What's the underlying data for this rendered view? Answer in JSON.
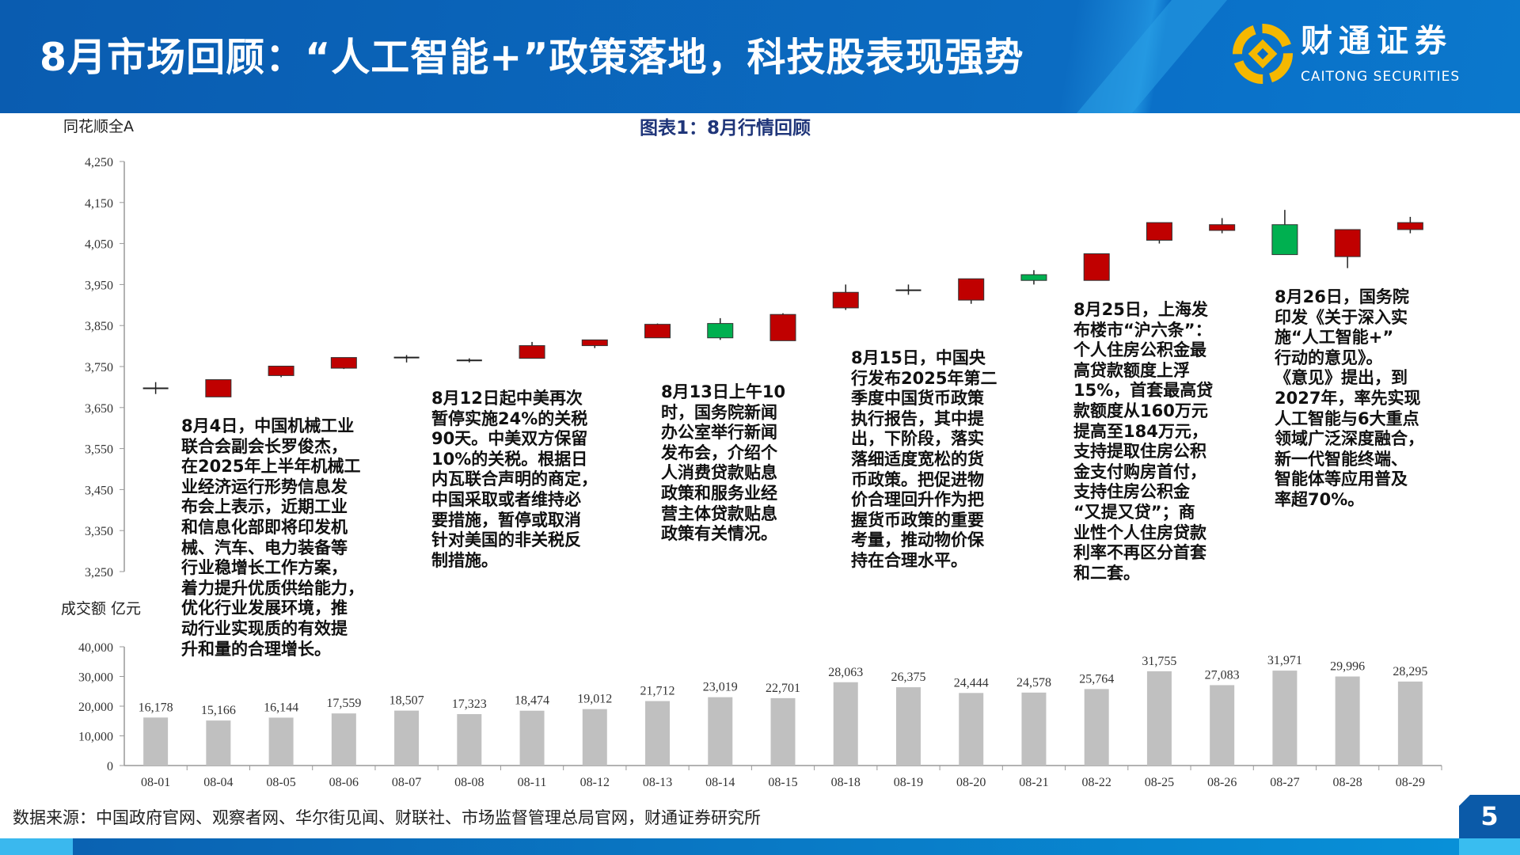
{
  "header": {
    "title": "8月市场回顾：“人工智能+”政策落地，科技股表现强势",
    "logo_cn": "财通证券",
    "logo_en": "CAITONG SECURITIES"
  },
  "chart_labels": {
    "price_axis_label": "同花顺全A",
    "volume_axis_label": "成交额 亿元"
  },
  "annotations": [
    "8月4日，中国机械工业\n联合会副会长罗俊杰，\n在2025年上半年机械工\n业经济运行形势信息发\n布会上表示，近期工业\n和信息化部即将印发机\n械、汽车、电力装备等\n行业稳增长工作方案，\n着力提升优质供给能力，\n优化行业发展环境，推\n动行业实现质的有效提\n升和量的合理增长。",
    "8月12日起中美再次\n暂停实施24%的关税\n90天。中美双方保留\n10%的关税。根据日\n内瓦联合声明的商定，\n中国采取或者维持必\n要措施，暂停或取消\n针对美国的非关税反\n制措施。",
    "8月13日上午10\n时，国务院新闻\n办公室举行新闻\n发布会，介绍个\n人消费贷款贴息\n政策和服务业经\n营主体贷款贴息\n政策有关情况。",
    "8月15日，中国央\n行发布2025年第二\n季度中国货币政策\n执行报告，其中提\n出，下阶段，落实\n落细适度宽松的货\n币政策。把促进物\n价合理回升作为把\n握货币政策的重要\n考量，推动物价保\n持在合理水平。",
    "8月25日，上海发\n布楼市“沪六条”：\n个人住房公积金最\n高贷款额度上浮\n15%，首套最高贷\n款额度从160万元\n提高至184万元，\n支持提取住房公积\n金支付购房首付，\n支持住房公积金\n“又提又贷”；商\n业性个人住房贷款\n利率不再区分首套\n和二套。",
    "8月26日，国务院\n印发《关于深入实\n施“人工智能+”\n行动的意见》。\n《意见》提出，到\n2027年，率先实现\n人工智能与6大重点\n领域广泛深度融合，\n新一代智能终端、\n智能体等应用普及\n率超70%。"
  ],
  "footer": {
    "source": "数据来源：中国政府官网、观察者网、华尔街见闻、财联社、市场监督管理总局官网，财通证券研究所",
    "page_number": "5"
  },
  "colors": {
    "up": "#c00000",
    "down": "#00b050",
    "bar": "#c0c0c0",
    "title": "#1f3579"
  },
  "chart_data": [
    {
      "type": "candlestick",
      "title": "图表1：8月行情回顾",
      "ylabel": "同花顺全A",
      "ylim": [
        3250,
        4250
      ],
      "yticks": [
        "4,250",
        "4,150",
        "4,050",
        "3,950",
        "3,850",
        "3,750",
        "3,650",
        "3,550",
        "3,450",
        "3,350",
        "3,250"
      ],
      "categories": [
        "08-01",
        "08-04",
        "08-05",
        "08-06",
        "08-07",
        "08-08",
        "08-11",
        "08-12",
        "08-13",
        "08-14",
        "08-15",
        "08-18",
        "08-19",
        "08-20",
        "08-21",
        "08-22",
        "08-25",
        "08-26",
        "08-27",
        "08-28",
        "08-29"
      ],
      "open": [
        3697,
        3676,
        3728,
        3746,
        3772,
        3765,
        3770,
        3801,
        3820,
        3855,
        3813,
        3893,
        3936,
        3912,
        3974,
        3960,
        4058,
        4082,
        4096,
        4018,
        4084
      ],
      "close": [
        3697,
        3718,
        3751,
        3772,
        3772,
        3765,
        3801,
        3815,
        3853,
        3820,
        3877,
        3931,
        3936,
        3964,
        3960,
        4025,
        4101,
        4096,
        4023,
        4084,
        4101
      ],
      "high": [
        3712,
        3718,
        3751,
        3772,
        3778,
        3770,
        3810,
        3815,
        3855,
        3868,
        3880,
        3950,
        3950,
        3964,
        3985,
        4025,
        4101,
        4112,
        4132,
        4084,
        4115
      ],
      "low": [
        3683,
        3676,
        3724,
        3744,
        3760,
        3760,
        3770,
        3795,
        3820,
        3815,
        3813,
        3888,
        3925,
        3903,
        3950,
        3960,
        4050,
        4075,
        4023,
        3990,
        4075
      ]
    },
    {
      "type": "bar",
      "ylabel": "成交额 亿元",
      "ylim": [
        0,
        40000
      ],
      "yticks": [
        "40,000",
        "30,000",
        "20,000",
        "10,000",
        "0"
      ],
      "categories": [
        "08-01",
        "08-04",
        "08-05",
        "08-06",
        "08-07",
        "08-08",
        "08-11",
        "08-12",
        "08-13",
        "08-14",
        "08-15",
        "08-18",
        "08-19",
        "08-20",
        "08-21",
        "08-22",
        "08-25",
        "08-26",
        "08-27",
        "08-28",
        "08-29"
      ],
      "values": [
        16178,
        15166,
        16144,
        17559,
        18507,
        17323,
        18474,
        19012,
        21712,
        23019,
        22701,
        28063,
        26375,
        24444,
        24578,
        25764,
        31755,
        27083,
        31971,
        29996,
        28295
      ],
      "value_labels": [
        "16,178",
        "15,166",
        "16,144",
        "17,559",
        "18,507",
        "17,323",
        "18,474",
        "19,012",
        "21,712",
        "23,019",
        "22,701",
        "28,063",
        "26,375",
        "24,444",
        "24,578",
        "25,764",
        "31,755",
        "27,083",
        "31,971",
        "29,996",
        "28,295"
      ]
    }
  ]
}
